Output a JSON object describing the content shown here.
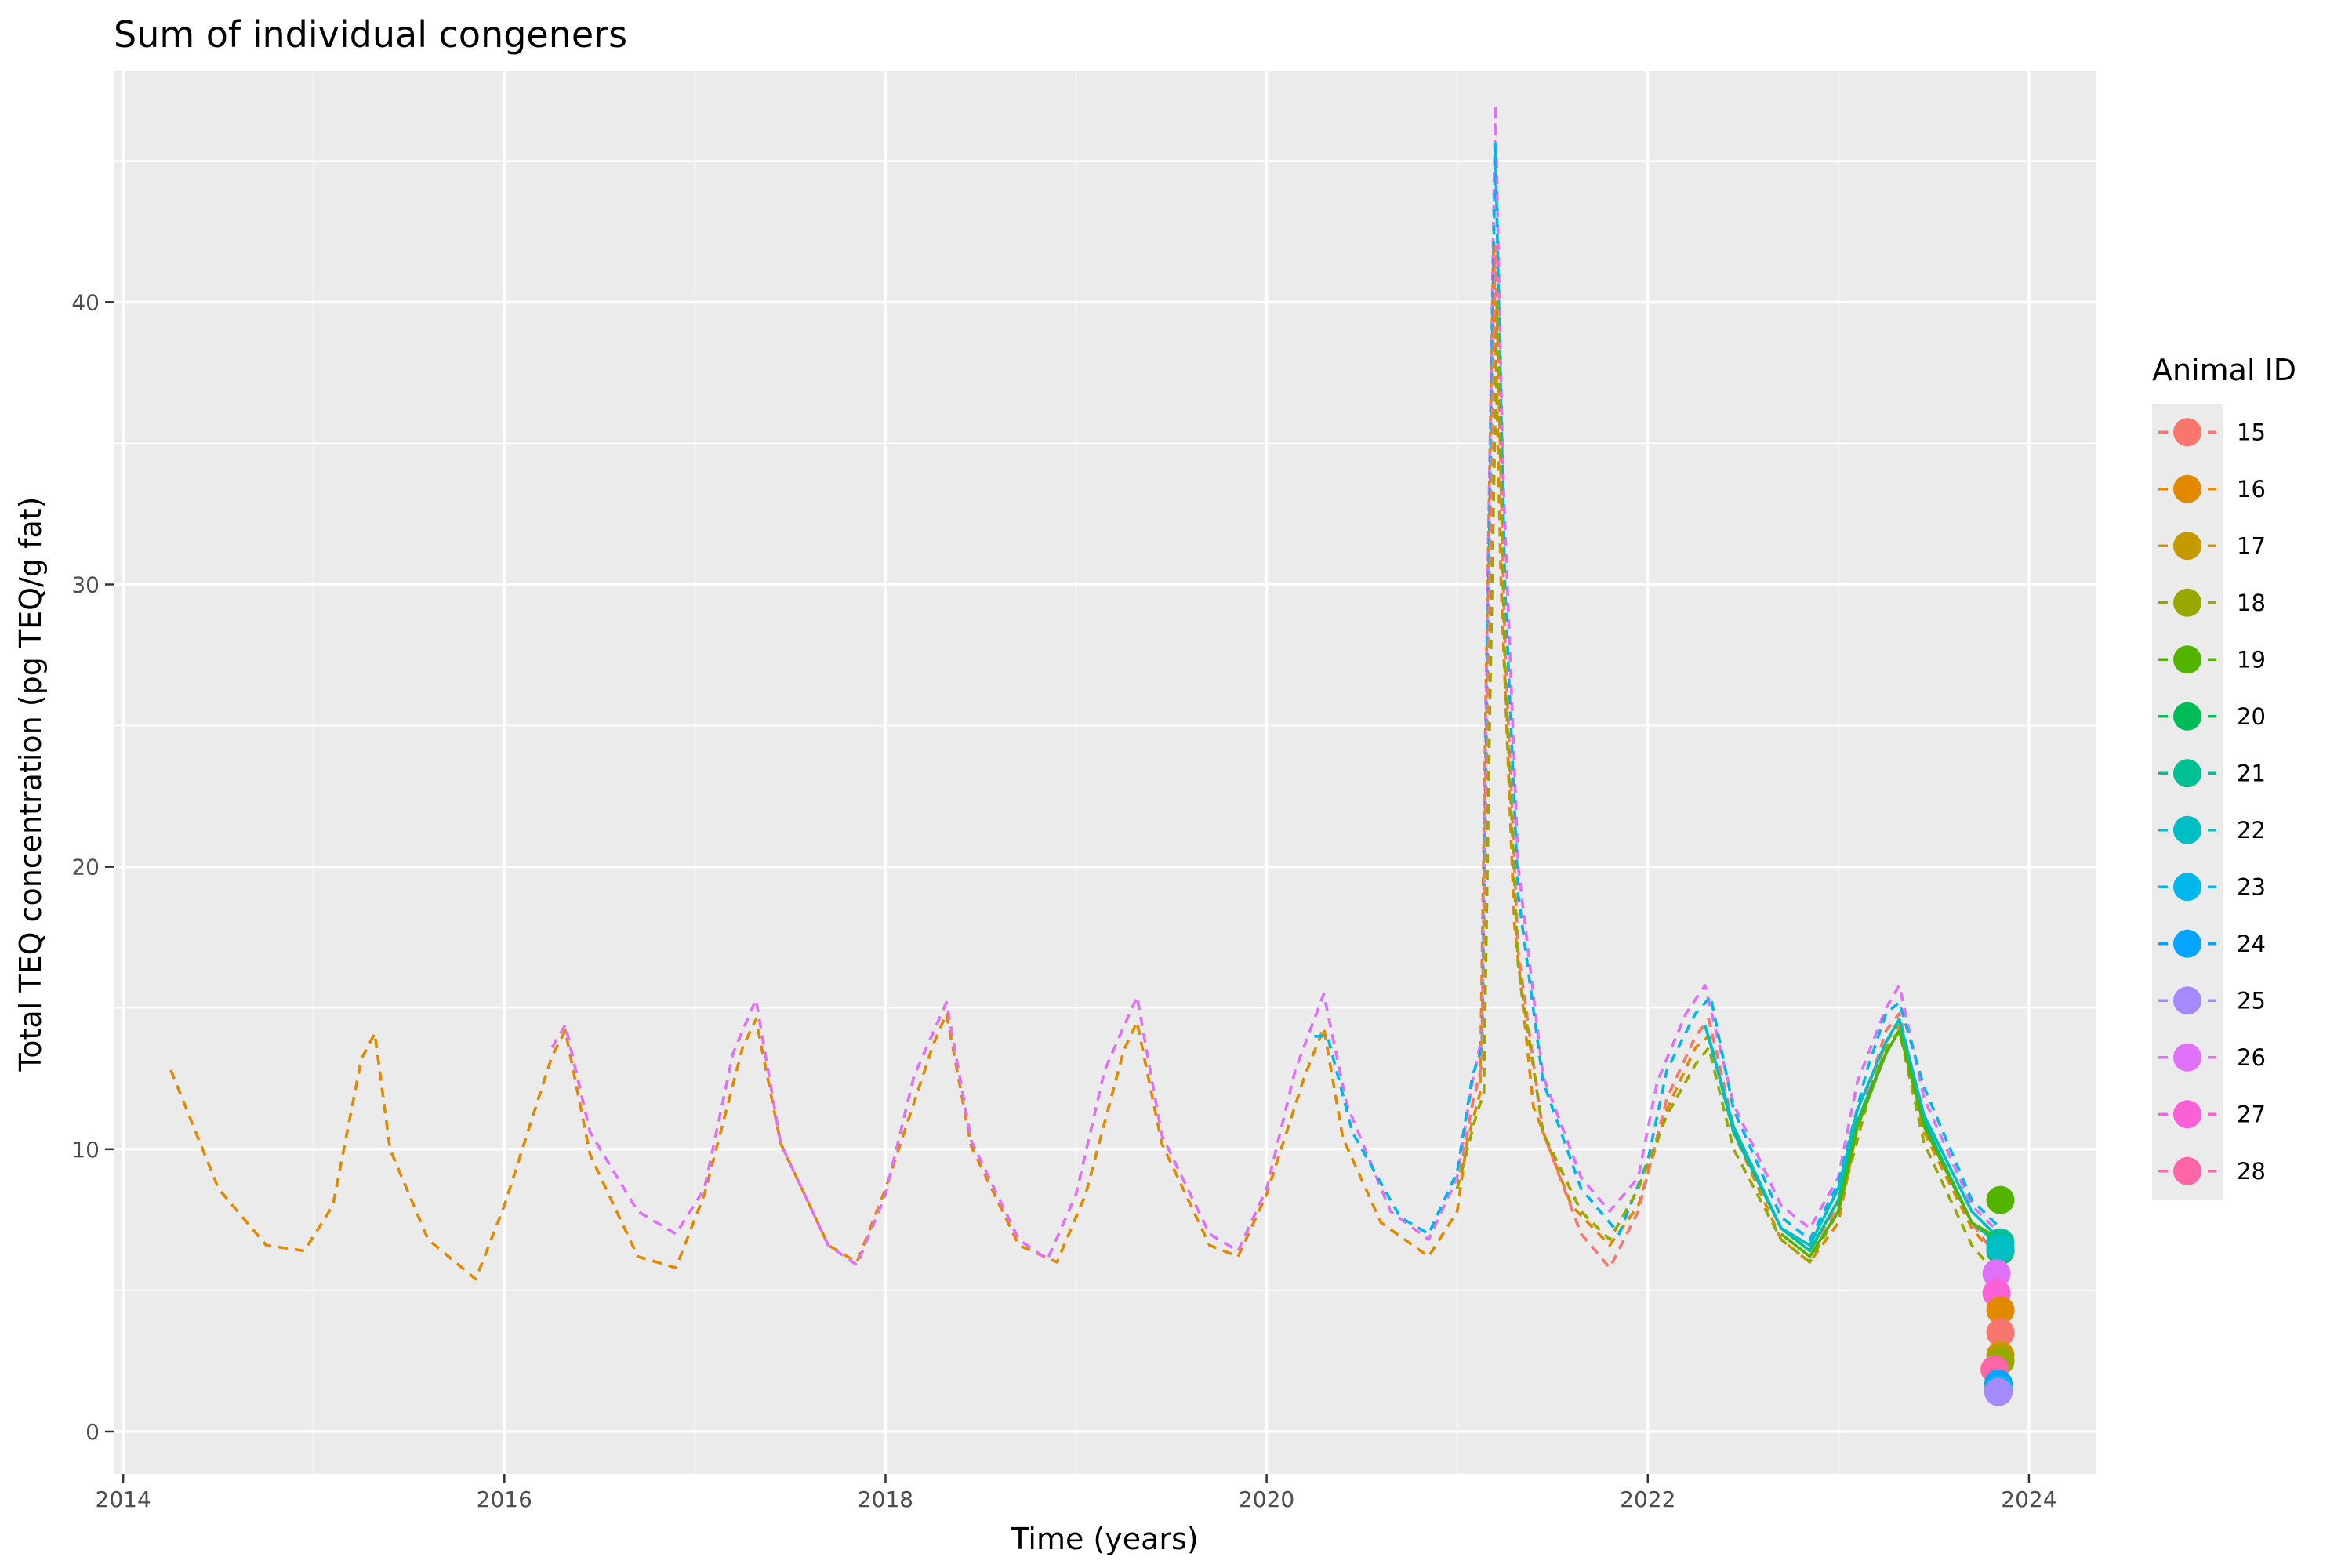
{
  "chart_data": {
    "type": "line",
    "title": "Sum of individual congeners",
    "xlabel": "Time (years)",
    "ylabel": "Total TEQ concentration (pg TEQ/g fat)",
    "xlim": [
      2013.95,
      2024.35
    ],
    "ylim": [
      -1.5,
      48.2
    ],
    "x_ticks": [
      2014,
      2016,
      2018,
      2020,
      2022,
      2024
    ],
    "x_tick_labels": [
      "2014",
      "2016",
      "2018",
      "2020",
      "2022",
      "2024"
    ],
    "y_ticks": [
      0,
      10,
      20,
      30,
      40
    ],
    "y_tick_labels": [
      "0",
      "10",
      "20",
      "30",
      "40"
    ],
    "grid": true,
    "legend": {
      "title": "Animal ID",
      "placement": "right",
      "entries": [
        {
          "label": "15",
          "color": "#F8766D"
        },
        {
          "label": "16",
          "color": "#E38900"
        },
        {
          "label": "17",
          "color": "#C49A00"
        },
        {
          "label": "18",
          "color": "#99A800"
        },
        {
          "label": "19",
          "color": "#53B400"
        },
        {
          "label": "20",
          "color": "#00BC56"
        },
        {
          "label": "21",
          "color": "#00C094"
        },
        {
          "label": "22",
          "color": "#00BFC4"
        },
        {
          "label": "23",
          "color": "#00B6EB"
        },
        {
          "label": "24",
          "color": "#06A4FF"
        },
        {
          "label": "25",
          "color": "#A58AFF"
        },
        {
          "label": "26",
          "color": "#DF70F8"
        },
        {
          "label": "27",
          "color": "#FB61D7"
        },
        {
          "label": "28",
          "color": "#FF66A8"
        }
      ]
    },
    "series": [
      {
        "id": "16",
        "color": "#E38900",
        "dash": true,
        "points": [
          [
            2014.25,
            12.8
          ],
          [
            2014.5,
            8.6
          ],
          [
            2014.75,
            6.6
          ],
          [
            2014.95,
            6.4
          ],
          [
            2015.1,
            8
          ],
          [
            2015.25,
            13.2
          ],
          [
            2015.32,
            14.1
          ],
          [
            2015.4,
            10
          ],
          [
            2015.6,
            6.8
          ],
          [
            2015.85,
            5.4
          ],
          [
            2016.0,
            8
          ],
          [
            2016.25,
            13.3
          ],
          [
            2016.32,
            14.2
          ],
          [
            2016.45,
            9.8
          ],
          [
            2016.7,
            6.2
          ],
          [
            2016.9,
            5.8
          ],
          [
            2017.05,
            8.4
          ],
          [
            2017.25,
            13.6
          ],
          [
            2017.32,
            14.6
          ],
          [
            2017.45,
            10.2
          ],
          [
            2017.7,
            6.6
          ],
          [
            2017.85,
            6.0
          ],
          [
            2018.0,
            8.6
          ],
          [
            2018.25,
            13.7
          ],
          [
            2018.32,
            14.8
          ],
          [
            2018.45,
            10.1
          ],
          [
            2018.7,
            6.6
          ],
          [
            2018.9,
            6.0
          ],
          [
            2019.05,
            8.4
          ],
          [
            2019.25,
            13.5
          ],
          [
            2019.32,
            14.5
          ],
          [
            2019.45,
            10.2
          ],
          [
            2019.7,
            6.6
          ],
          [
            2019.85,
            6.2
          ],
          [
            2020.0,
            8.4
          ],
          [
            2020.2,
            12.6
          ],
          [
            2020.3,
            14.3
          ],
          [
            2020.4,
            10.4
          ],
          [
            2020.6,
            7.4
          ],
          [
            2020.85,
            6.2
          ],
          [
            2021.0,
            7.8
          ],
          [
            2021.05,
            10.2
          ],
          [
            2021.12,
            12
          ],
          [
            2021.15,
            26
          ],
          [
            2021.19,
            42
          ],
          [
            2021.23,
            30
          ],
          [
            2021.3,
            18
          ],
          [
            2021.4,
            11.5
          ],
          [
            2021.6,
            8
          ],
          [
            2021.8,
            6.6
          ],
          [
            2021.95,
            8
          ],
          [
            2022.1,
            11.4
          ],
          [
            2022.25,
            13.6
          ],
          [
            2022.32,
            14.0
          ],
          [
            2022.45,
            10.6
          ],
          [
            2022.7,
            6.8
          ],
          [
            2022.85,
            6.0
          ],
          [
            2023.0,
            7.4
          ],
          [
            2023.1,
            10.8
          ],
          [
            2023.25,
            13.8
          ],
          [
            2023.32,
            14.4
          ],
          [
            2023.45,
            10.6
          ],
          [
            2023.7,
            7.2
          ],
          [
            2023.8,
            6.4
          ],
          [
            2023.85,
            5.8
          ]
        ]
      },
      {
        "id": "26",
        "color": "#DF70F8",
        "dash": true,
        "points": [
          [
            2016.25,
            13.6
          ],
          [
            2016.32,
            14.4
          ],
          [
            2016.45,
            10.6
          ],
          [
            2016.7,
            7.8
          ],
          [
            2016.9,
            7.0
          ],
          [
            2017.05,
            8.6
          ],
          [
            2017.2,
            13.4
          ],
          [
            2017.32,
            15.3
          ],
          [
            2017.45,
            10.2
          ],
          [
            2017.7,
            6.6
          ],
          [
            2017.85,
            5.9
          ],
          [
            2018.0,
            8.4
          ],
          [
            2018.15,
            12.6
          ],
          [
            2018.32,
            15.2
          ],
          [
            2018.45,
            10.3
          ],
          [
            2018.7,
            6.8
          ],
          [
            2018.85,
            6.1
          ],
          [
            2019.0,
            8.4
          ],
          [
            2019.15,
            12.8
          ],
          [
            2019.32,
            15.4
          ],
          [
            2019.45,
            10.5
          ],
          [
            2019.7,
            7.0
          ],
          [
            2019.85,
            6.4
          ],
          [
            2020.0,
            8.6
          ],
          [
            2020.15,
            12.8
          ],
          [
            2020.3,
            15.5
          ],
          [
            2020.42,
            11.6
          ],
          [
            2020.65,
            7.8
          ],
          [
            2020.85,
            6.8
          ],
          [
            2021.0,
            9.0
          ],
          [
            2021.08,
            12.4
          ],
          [
            2021.13,
            14.0
          ],
          [
            2021.16,
            30
          ],
          [
            2021.2,
            47
          ],
          [
            2021.24,
            34
          ],
          [
            2021.32,
            20
          ],
          [
            2021.45,
            12.6
          ],
          [
            2021.65,
            9.0
          ],
          [
            2021.8,
            7.8
          ],
          [
            2021.95,
            9.0
          ],
          [
            2022.05,
            12.4
          ],
          [
            2022.2,
            14.8
          ],
          [
            2022.3,
            15.8
          ],
          [
            2022.45,
            11.6
          ],
          [
            2022.7,
            8.0
          ],
          [
            2022.85,
            7.2
          ],
          [
            2023.0,
            9.0
          ],
          [
            2023.1,
            12.4
          ],
          [
            2023.25,
            15.0
          ],
          [
            2023.32,
            15.8
          ],
          [
            2023.45,
            11.8
          ],
          [
            2023.7,
            8.0
          ],
          [
            2023.85,
            7.0
          ]
        ]
      },
      {
        "id": "23",
        "color": "#00B6EB",
        "dash": true,
        "points": [
          [
            2020.25,
            14.0
          ],
          [
            2020.32,
            14.0
          ],
          [
            2020.45,
            10.6
          ],
          [
            2020.7,
            7.6
          ],
          [
            2020.85,
            7.0
          ],
          [
            2021.0,
            9.2
          ],
          [
            2021.08,
            12.6
          ],
          [
            2021.13,
            13.6
          ],
          [
            2021.16,
            28
          ],
          [
            2021.2,
            45.6
          ],
          [
            2021.25,
            30
          ],
          [
            2021.32,
            19
          ],
          [
            2021.45,
            12.4
          ],
          [
            2021.65,
            8.6
          ],
          [
            2021.85,
            7.0
          ],
          [
            2022.0,
            9.6
          ],
          [
            2022.1,
            12.8
          ],
          [
            2022.25,
            14.8
          ],
          [
            2022.33,
            15.4
          ],
          [
            2022.45,
            11.4
          ],
          [
            2022.7,
            7.6
          ],
          [
            2022.85,
            6.8
          ],
          [
            2023.0,
            8.8
          ],
          [
            2023.15,
            12.8
          ],
          [
            2023.25,
            14.8
          ],
          [
            2023.32,
            15.2
          ],
          [
            2023.45,
            12.2
          ],
          [
            2023.7,
            8.2
          ],
          [
            2023.85,
            7.2
          ]
        ]
      },
      {
        "id": "15",
        "color": "#F8766D",
        "dash": true,
        "points": [
          [
            2021.0,
            8.6
          ],
          [
            2021.08,
            11.6
          ],
          [
            2021.13,
            13
          ],
          [
            2021.16,
            26
          ],
          [
            2021.2,
            42
          ],
          [
            2021.25,
            28
          ],
          [
            2021.32,
            17
          ],
          [
            2021.45,
            10.6
          ],
          [
            2021.65,
            7.0
          ],
          [
            2021.8,
            5.8
          ],
          [
            2021.95,
            7.8
          ],
          [
            2022.1,
            11.8
          ],
          [
            2022.25,
            14.0
          ],
          [
            2022.32,
            14.6
          ],
          [
            2022.45,
            10.8
          ],
          [
            2022.7,
            7.2
          ],
          [
            2022.85,
            6.4
          ],
          [
            2023.0,
            8.0
          ],
          [
            2023.15,
            12.0
          ],
          [
            2023.25,
            14.2
          ],
          [
            2023.32,
            14.8
          ],
          [
            2023.45,
            11.0
          ],
          [
            2023.7,
            7.4
          ],
          [
            2023.85,
            6.0
          ]
        ]
      },
      {
        "id": "18",
        "color": "#99A800",
        "dash": true,
        "points": [
          [
            2021.0,
            8.6
          ],
          [
            2021.1,
            11.2
          ],
          [
            2021.14,
            12
          ],
          [
            2021.17,
            25
          ],
          [
            2021.21,
            40
          ],
          [
            2021.25,
            27
          ],
          [
            2021.32,
            16.5
          ],
          [
            2021.45,
            10.6
          ],
          [
            2021.65,
            7.8
          ],
          [
            2021.8,
            6.8
          ],
          [
            2021.95,
            8.6
          ],
          [
            2022.1,
            11.2
          ],
          [
            2022.25,
            13.0
          ],
          [
            2022.32,
            13.6
          ],
          [
            2022.45,
            10.0
          ],
          [
            2022.7,
            6.8
          ],
          [
            2022.85,
            6.0
          ],
          [
            2023.0,
            7.8
          ],
          [
            2023.15,
            11.6
          ],
          [
            2023.25,
            13.6
          ],
          [
            2023.32,
            14.2
          ],
          [
            2023.45,
            10.2
          ],
          [
            2023.7,
            6.6
          ],
          [
            2023.85,
            5.4
          ]
        ]
      },
      {
        "id": "21",
        "color": "#00C094",
        "dash": false,
        "points": [
          [
            2022.32,
            14.0
          ],
          [
            2022.45,
            10.6
          ],
          [
            2022.7,
            7.2
          ],
          [
            2022.85,
            6.4
          ],
          [
            2023.0,
            8.2
          ],
          [
            2023.1,
            11.0
          ],
          [
            2023.25,
            13.4
          ],
          [
            2023.32,
            14.2
          ],
          [
            2023.45,
            11.0
          ],
          [
            2023.7,
            7.4
          ],
          [
            2023.85,
            6.6
          ]
        ]
      },
      {
        "id": "22",
        "color": "#00BFC4",
        "dash": false,
        "points": [
          [
            2022.3,
            14.4
          ],
          [
            2022.45,
            10.8
          ],
          [
            2022.7,
            7.2
          ],
          [
            2022.85,
            6.6
          ],
          [
            2023.0,
            8.6
          ],
          [
            2023.1,
            11.4
          ],
          [
            2023.25,
            13.8
          ],
          [
            2023.32,
            14.6
          ],
          [
            2023.45,
            11.2
          ],
          [
            2023.7,
            7.8
          ],
          [
            2023.85,
            6.8
          ]
        ]
      },
      {
        "id": "19",
        "color": "#53B400",
        "dash": false,
        "points": [
          [
            2022.7,
            7.0
          ],
          [
            2022.85,
            6.2
          ],
          [
            2023.0,
            7.8
          ],
          [
            2023.1,
            10.8
          ],
          [
            2023.25,
            13.4
          ],
          [
            2023.32,
            14.2
          ],
          [
            2023.45,
            10.8
          ],
          [
            2023.7,
            7.4
          ],
          [
            2023.85,
            6.8
          ]
        ]
      }
    ],
    "end_points": [
      {
        "id": "19",
        "x": 2023.85,
        "y": 8.2,
        "color": "#53B400"
      },
      {
        "id": "21",
        "x": 2023.85,
        "y": 6.7,
        "color": "#00C094"
      },
      {
        "id": "20",
        "x": 2023.85,
        "y": 6.4,
        "color": "#00BC56"
      },
      {
        "id": "22",
        "x": 2023.85,
        "y": 6.5,
        "color": "#00BFC4"
      },
      {
        "id": "26",
        "x": 2023.83,
        "y": 5.6,
        "color": "#DF70F8"
      },
      {
        "id": "27",
        "x": 2023.83,
        "y": 4.9,
        "color": "#FB61D7"
      },
      {
        "id": "16",
        "x": 2023.85,
        "y": 4.3,
        "color": "#E38900"
      },
      {
        "id": "15",
        "x": 2023.85,
        "y": 3.5,
        "color": "#F8766D"
      },
      {
        "id": "17",
        "x": 2023.85,
        "y": 2.7,
        "color": "#C49A00"
      },
      {
        "id": "18",
        "x": 2023.85,
        "y": 2.5,
        "color": "#99A800"
      },
      {
        "id": "28",
        "x": 2023.82,
        "y": 2.2,
        "color": "#FF66A8"
      },
      {
        "id": "24",
        "x": 2023.84,
        "y": 1.7,
        "color": "#06A4FF"
      },
      {
        "id": "23",
        "x": 2023.84,
        "y": 1.5,
        "color": "#00B6EB"
      },
      {
        "id": "25",
        "x": 2023.84,
        "y": 1.4,
        "color": "#A58AFF"
      }
    ],
    "colors": {
      "panel": "#EBEBEB",
      "grid": "#FFFFFF",
      "tick": "#333333"
    }
  }
}
